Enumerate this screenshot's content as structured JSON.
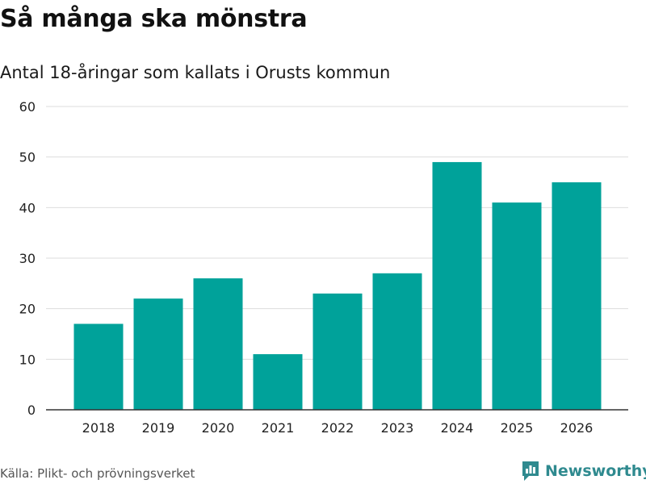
{
  "chart_data": {
    "type": "bar",
    "title": "Så många ska mönstra",
    "subtitle": "Antal 18-åringar som kallats i Orusts kommun",
    "categories": [
      "2018",
      "2019",
      "2020",
      "2021",
      "2022",
      "2023",
      "2024",
      "2025",
      "2026"
    ],
    "values": [
      17,
      22,
      26,
      11,
      23,
      27,
      49,
      41,
      45
    ],
    "ylim": [
      0,
      60
    ],
    "yticks": [
      0,
      10,
      20,
      30,
      40,
      50,
      60
    ],
    "xlabel": "",
    "ylabel": "",
    "grid": true,
    "bar_color": "#00a29a"
  },
  "footer": {
    "source": "Källa: Plikt- och prövningsverket",
    "brand": "Newsworthy"
  },
  "colors": {
    "brand": "#2f8a8f",
    "grid": "#dddddd",
    "axis": "#333333"
  }
}
